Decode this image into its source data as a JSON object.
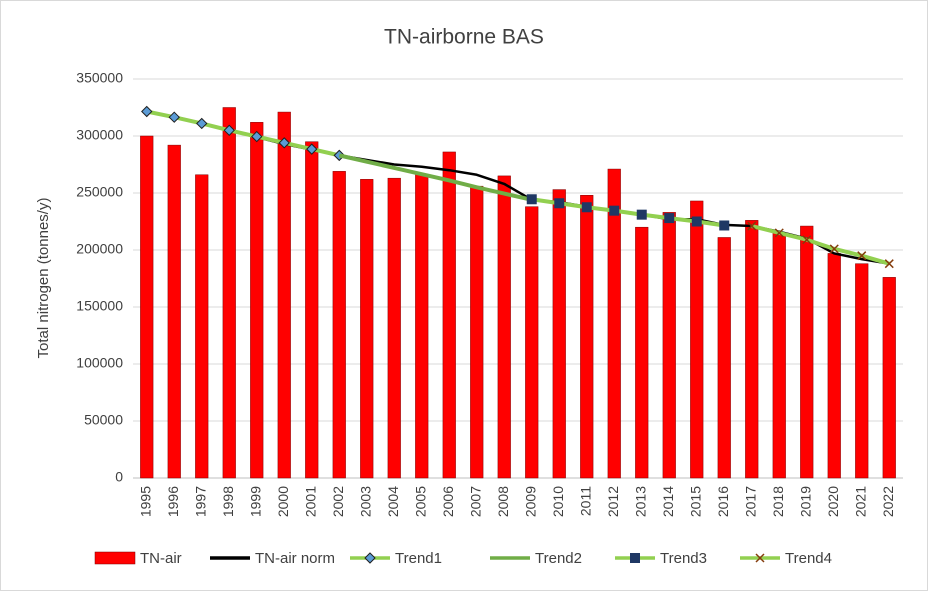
{
  "chart_data": {
    "type": "bar_line",
    "title": "TN-airborne BAS",
    "y_label": "Total nitrogen (tonnes/y)",
    "categories": [
      "1995",
      "1996",
      "1997",
      "1998",
      "1999",
      "2000",
      "2001",
      "2002",
      "2003",
      "2004",
      "2005",
      "2006",
      "2007",
      "2008",
      "2009",
      "2010",
      "2011",
      "2012",
      "2013",
      "2014",
      "2015",
      "2016",
      "2017",
      "2018",
      "2019",
      "2020",
      "2021",
      "2022"
    ],
    "ylim": [
      0,
      350000
    ],
    "yticks": [
      0,
      50000,
      100000,
      150000,
      200000,
      250000,
      300000,
      350000
    ],
    "grid": true,
    "legend": "bottom",
    "series": [
      {
        "name": "TN-air",
        "kind": "bar",
        "color": "#ff0000",
        "values": [
          300000,
          292000,
          266000,
          325000,
          312000,
          321000,
          295000,
          269000,
          262000,
          263000,
          266000,
          286000,
          256000,
          265000,
          238000,
          253000,
          248000,
          271000,
          220000,
          233000,
          243000,
          211000,
          226000,
          215000,
          221000,
          197000,
          188000,
          176000
        ]
      },
      {
        "name": "TN-air norm",
        "kind": "line",
        "color": "#000000",
        "values": [
          321000,
          317000,
          311000,
          305000,
          299000,
          293000,
          288000,
          283000,
          279000,
          275000,
          273000,
          270000,
          266000,
          258000,
          244000,
          242000,
          238000,
          234000,
          231000,
          227000,
          227000,
          222000,
          221000,
          216000,
          210000,
          197000,
          192000,
          188000
        ]
      },
      {
        "name": "Trend1",
        "kind": "line",
        "color": "#92d050",
        "marker": "diamond",
        "marker_color": "#5b9bd5",
        "values": [
          321500,
          316500,
          311000,
          305000,
          299500,
          294000,
          288500,
          283000,
          null,
          null,
          null,
          null,
          null,
          null,
          null,
          null,
          null,
          null,
          null,
          null,
          null,
          null,
          null,
          null,
          null,
          null,
          null,
          null
        ]
      },
      {
        "name": "Trend2",
        "kind": "line",
        "color": "#70ad47",
        "values": [
          null,
          null,
          null,
          null,
          null,
          null,
          null,
          283000,
          277500,
          272000,
          266500,
          261000,
          255000,
          249500,
          244000,
          null,
          null,
          null,
          null,
          null,
          null,
          null,
          null,
          null,
          null,
          null,
          null,
          null
        ]
      },
      {
        "name": "Trend3",
        "kind": "line",
        "color": "#92d050",
        "marker": "square",
        "marker_color": "#1f3864",
        "values": [
          null,
          null,
          null,
          null,
          null,
          null,
          null,
          null,
          null,
          null,
          null,
          null,
          null,
          null,
          244500,
          241000,
          237500,
          234500,
          231000,
          228000,
          225000,
          221500,
          null,
          null,
          null,
          null,
          null,
          null
        ]
      },
      {
        "name": "Trend4",
        "kind": "line",
        "color": "#92d050",
        "marker": "x",
        "marker_color": "#843c0c",
        "values": [
          null,
          null,
          null,
          null,
          null,
          null,
          null,
          null,
          null,
          null,
          null,
          null,
          null,
          null,
          null,
          null,
          null,
          null,
          null,
          null,
          null,
          null,
          221000,
          215000,
          209000,
          201000,
          195000,
          188000
        ]
      }
    ]
  }
}
